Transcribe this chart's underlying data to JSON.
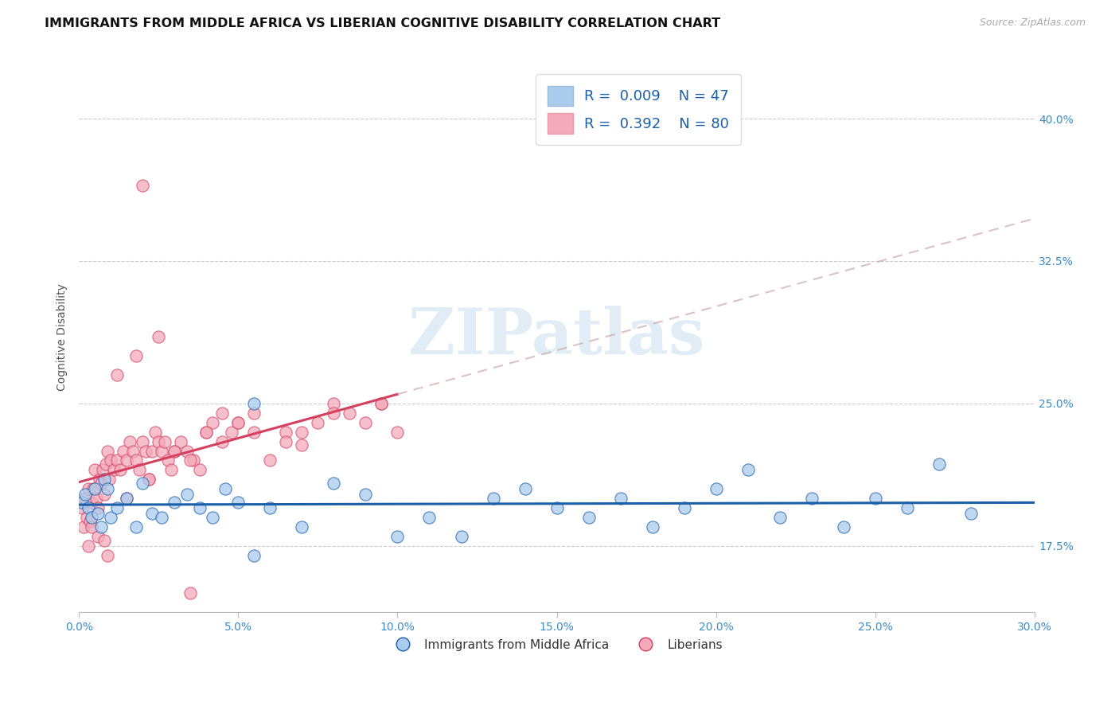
{
  "title": "IMMIGRANTS FROM MIDDLE AFRICA VS LIBERIAN COGNITIVE DISABILITY CORRELATION CHART",
  "source": "Source: ZipAtlas.com",
  "xlabel_blue": "Immigrants from Middle Africa",
  "xlabel_pink": "Liberians",
  "ylabel": "Cognitive Disability",
  "xlim": [
    0.0,
    30.0
  ],
  "ylim": [
    14.0,
    43.0
  ],
  "xticks": [
    0.0,
    5.0,
    10.0,
    15.0,
    20.0,
    25.0,
    30.0
  ],
  "yticks": [
    17.5,
    25.0,
    32.5,
    40.0
  ],
  "R_blue": 0.009,
  "N_blue": 47,
  "R_pink": 0.392,
  "N_pink": 80,
  "blue_color": "#aaccee",
  "pink_color": "#f4aabb",
  "blue_line_color": "#1a5fa8",
  "pink_line_color": "#d44060",
  "tick_label_color": "#3a8cc4",
  "watermark": "ZIPatlas",
  "blue_scatter_x": [
    0.1,
    0.2,
    0.3,
    0.4,
    0.5,
    0.6,
    0.7,
    0.8,
    0.9,
    1.0,
    1.2,
    1.5,
    1.8,
    2.0,
    2.3,
    2.6,
    3.0,
    3.4,
    3.8,
    4.2,
    4.6,
    5.0,
    5.5,
    6.0,
    7.0,
    8.0,
    9.0,
    10.0,
    11.0,
    12.0,
    13.0,
    14.0,
    15.0,
    16.0,
    17.0,
    18.0,
    19.0,
    20.0,
    21.0,
    22.0,
    23.0,
    24.0,
    25.0,
    26.0,
    27.0,
    28.0,
    5.5
  ],
  "blue_scatter_y": [
    19.8,
    20.2,
    19.5,
    19.0,
    20.5,
    19.2,
    18.5,
    21.0,
    20.5,
    19.0,
    19.5,
    20.0,
    18.5,
    20.8,
    19.2,
    19.0,
    19.8,
    20.2,
    19.5,
    19.0,
    20.5,
    19.8,
    17.0,
    19.5,
    18.5,
    20.8,
    20.2,
    18.0,
    19.0,
    18.0,
    20.0,
    20.5,
    19.5,
    19.0,
    20.0,
    18.5,
    19.5,
    20.5,
    21.5,
    19.0,
    20.0,
    18.5,
    20.0,
    19.5,
    21.8,
    19.2,
    25.0
  ],
  "pink_scatter_x": [
    0.1,
    0.15,
    0.2,
    0.25,
    0.3,
    0.35,
    0.4,
    0.45,
    0.5,
    0.55,
    0.6,
    0.65,
    0.7,
    0.75,
    0.8,
    0.85,
    0.9,
    0.95,
    1.0,
    1.1,
    1.2,
    1.3,
    1.4,
    1.5,
    1.6,
    1.7,
    1.8,
    1.9,
    2.0,
    2.1,
    2.2,
    2.3,
    2.4,
    2.5,
    2.6,
    2.7,
    2.8,
    2.9,
    3.0,
    3.2,
    3.4,
    3.6,
    3.8,
    4.0,
    4.2,
    4.5,
    4.8,
    5.0,
    5.5,
    6.0,
    6.5,
    7.0,
    7.5,
    8.0,
    8.5,
    9.0,
    9.5,
    10.0,
    0.3,
    0.6,
    0.9,
    1.2,
    1.8,
    2.5,
    3.5,
    4.5,
    5.5,
    7.0,
    0.4,
    0.8,
    1.5,
    2.2,
    3.0,
    4.0,
    5.0,
    6.5,
    8.0,
    9.5,
    2.0,
    3.5
  ],
  "pink_scatter_y": [
    19.5,
    18.5,
    20.0,
    19.0,
    20.5,
    18.8,
    19.8,
    20.5,
    21.5,
    20.0,
    19.5,
    21.0,
    20.8,
    21.5,
    20.2,
    21.8,
    22.5,
    21.0,
    22.0,
    21.5,
    22.0,
    21.5,
    22.5,
    22.0,
    23.0,
    22.5,
    22.0,
    21.5,
    23.0,
    22.5,
    21.0,
    22.5,
    23.5,
    23.0,
    22.5,
    23.0,
    22.0,
    21.5,
    22.5,
    23.0,
    22.5,
    22.0,
    21.5,
    23.5,
    24.0,
    24.5,
    23.5,
    24.0,
    23.5,
    22.0,
    23.5,
    22.8,
    24.0,
    25.0,
    24.5,
    24.0,
    25.0,
    23.5,
    17.5,
    18.0,
    17.0,
    26.5,
    27.5,
    28.5,
    22.0,
    23.0,
    24.5,
    23.5,
    18.5,
    17.8,
    20.0,
    21.0,
    22.5,
    23.5,
    24.0,
    23.0,
    24.5,
    25.0,
    36.5,
    15.0
  ]
}
